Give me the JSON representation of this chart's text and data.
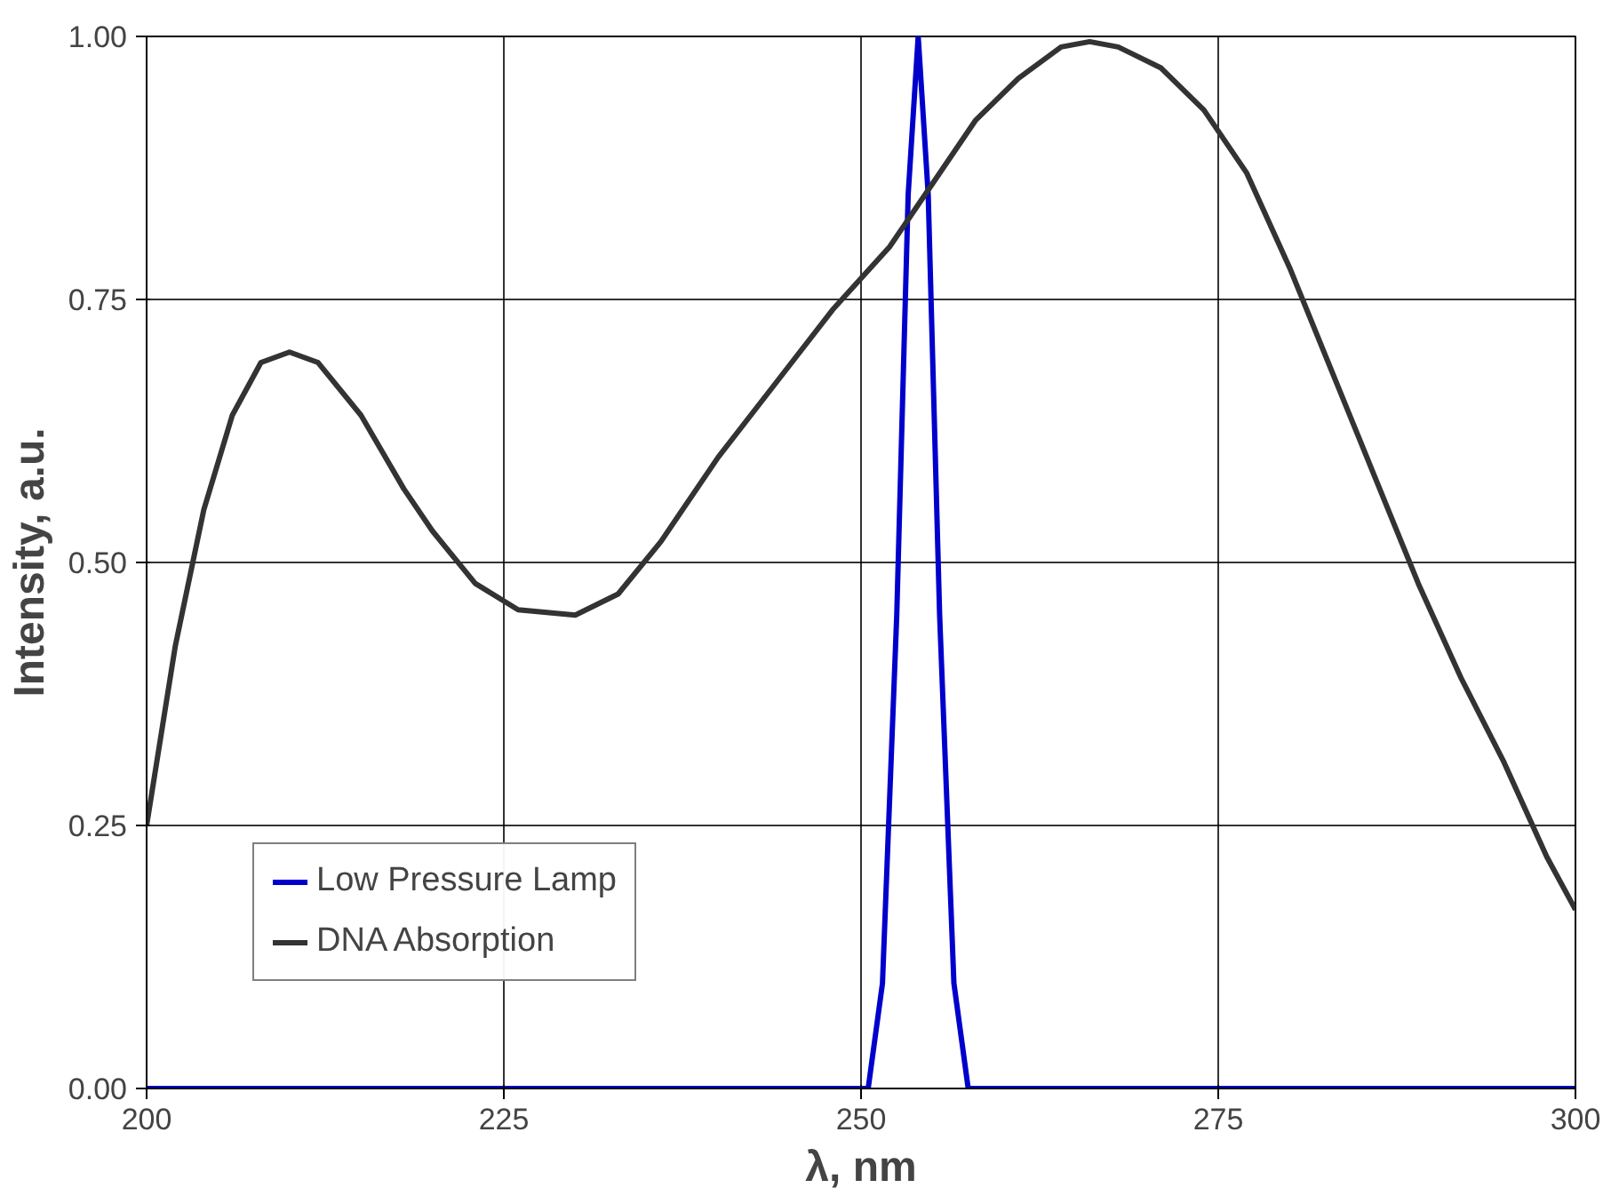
{
  "chart_data": {
    "type": "line",
    "xlabel": "λ, nm",
    "ylabel": "Intensity, a.u.",
    "xlim": [
      200,
      300
    ],
    "ylim": [
      0,
      1
    ],
    "xticks": [
      200,
      225,
      250,
      275,
      300
    ],
    "yticks": [
      {
        "value": 0,
        "label": "0.00"
      },
      {
        "value": 0.25,
        "label": "0.25"
      },
      {
        "value": 0.5,
        "label": "0.50"
      },
      {
        "value": 0.75,
        "label": "0.75"
      },
      {
        "value": 1,
        "label": "1.00"
      }
    ],
    "grid": true,
    "legend": "bottom left",
    "marker": "none",
    "line_style": "solid",
    "series": [
      {
        "name": "Low Pressure Lamp",
        "color": "#0000cc",
        "x": [
          200,
          250.5,
          251.5,
          252.5,
          253.3,
          254,
          254.7,
          255.5,
          256.5,
          257.5,
          300
        ],
        "values": [
          0,
          0,
          0.1,
          0.45,
          0.85,
          1.0,
          0.85,
          0.45,
          0.1,
          0,
          0
        ]
      },
      {
        "name": "DNA Absorption",
        "color": "#333333",
        "x": [
          200,
          202,
          204,
          206,
          208,
          210,
          212,
          215,
          218,
          220,
          223,
          226,
          230,
          233,
          236,
          240,
          244,
          248,
          252,
          255,
          258,
          261,
          264,
          266,
          268,
          271,
          274,
          277,
          280,
          283,
          286,
          289,
          292,
          295,
          298,
          300
        ],
        "values": [
          0.25,
          0.42,
          0.55,
          0.64,
          0.69,
          0.7,
          0.69,
          0.64,
          0.57,
          0.53,
          0.48,
          0.455,
          0.45,
          0.47,
          0.52,
          0.6,
          0.67,
          0.74,
          0.8,
          0.86,
          0.92,
          0.96,
          0.99,
          0.995,
          0.99,
          0.97,
          0.93,
          0.87,
          0.78,
          0.68,
          0.58,
          0.48,
          0.39,
          0.31,
          0.22,
          0.17
        ]
      }
    ]
  }
}
